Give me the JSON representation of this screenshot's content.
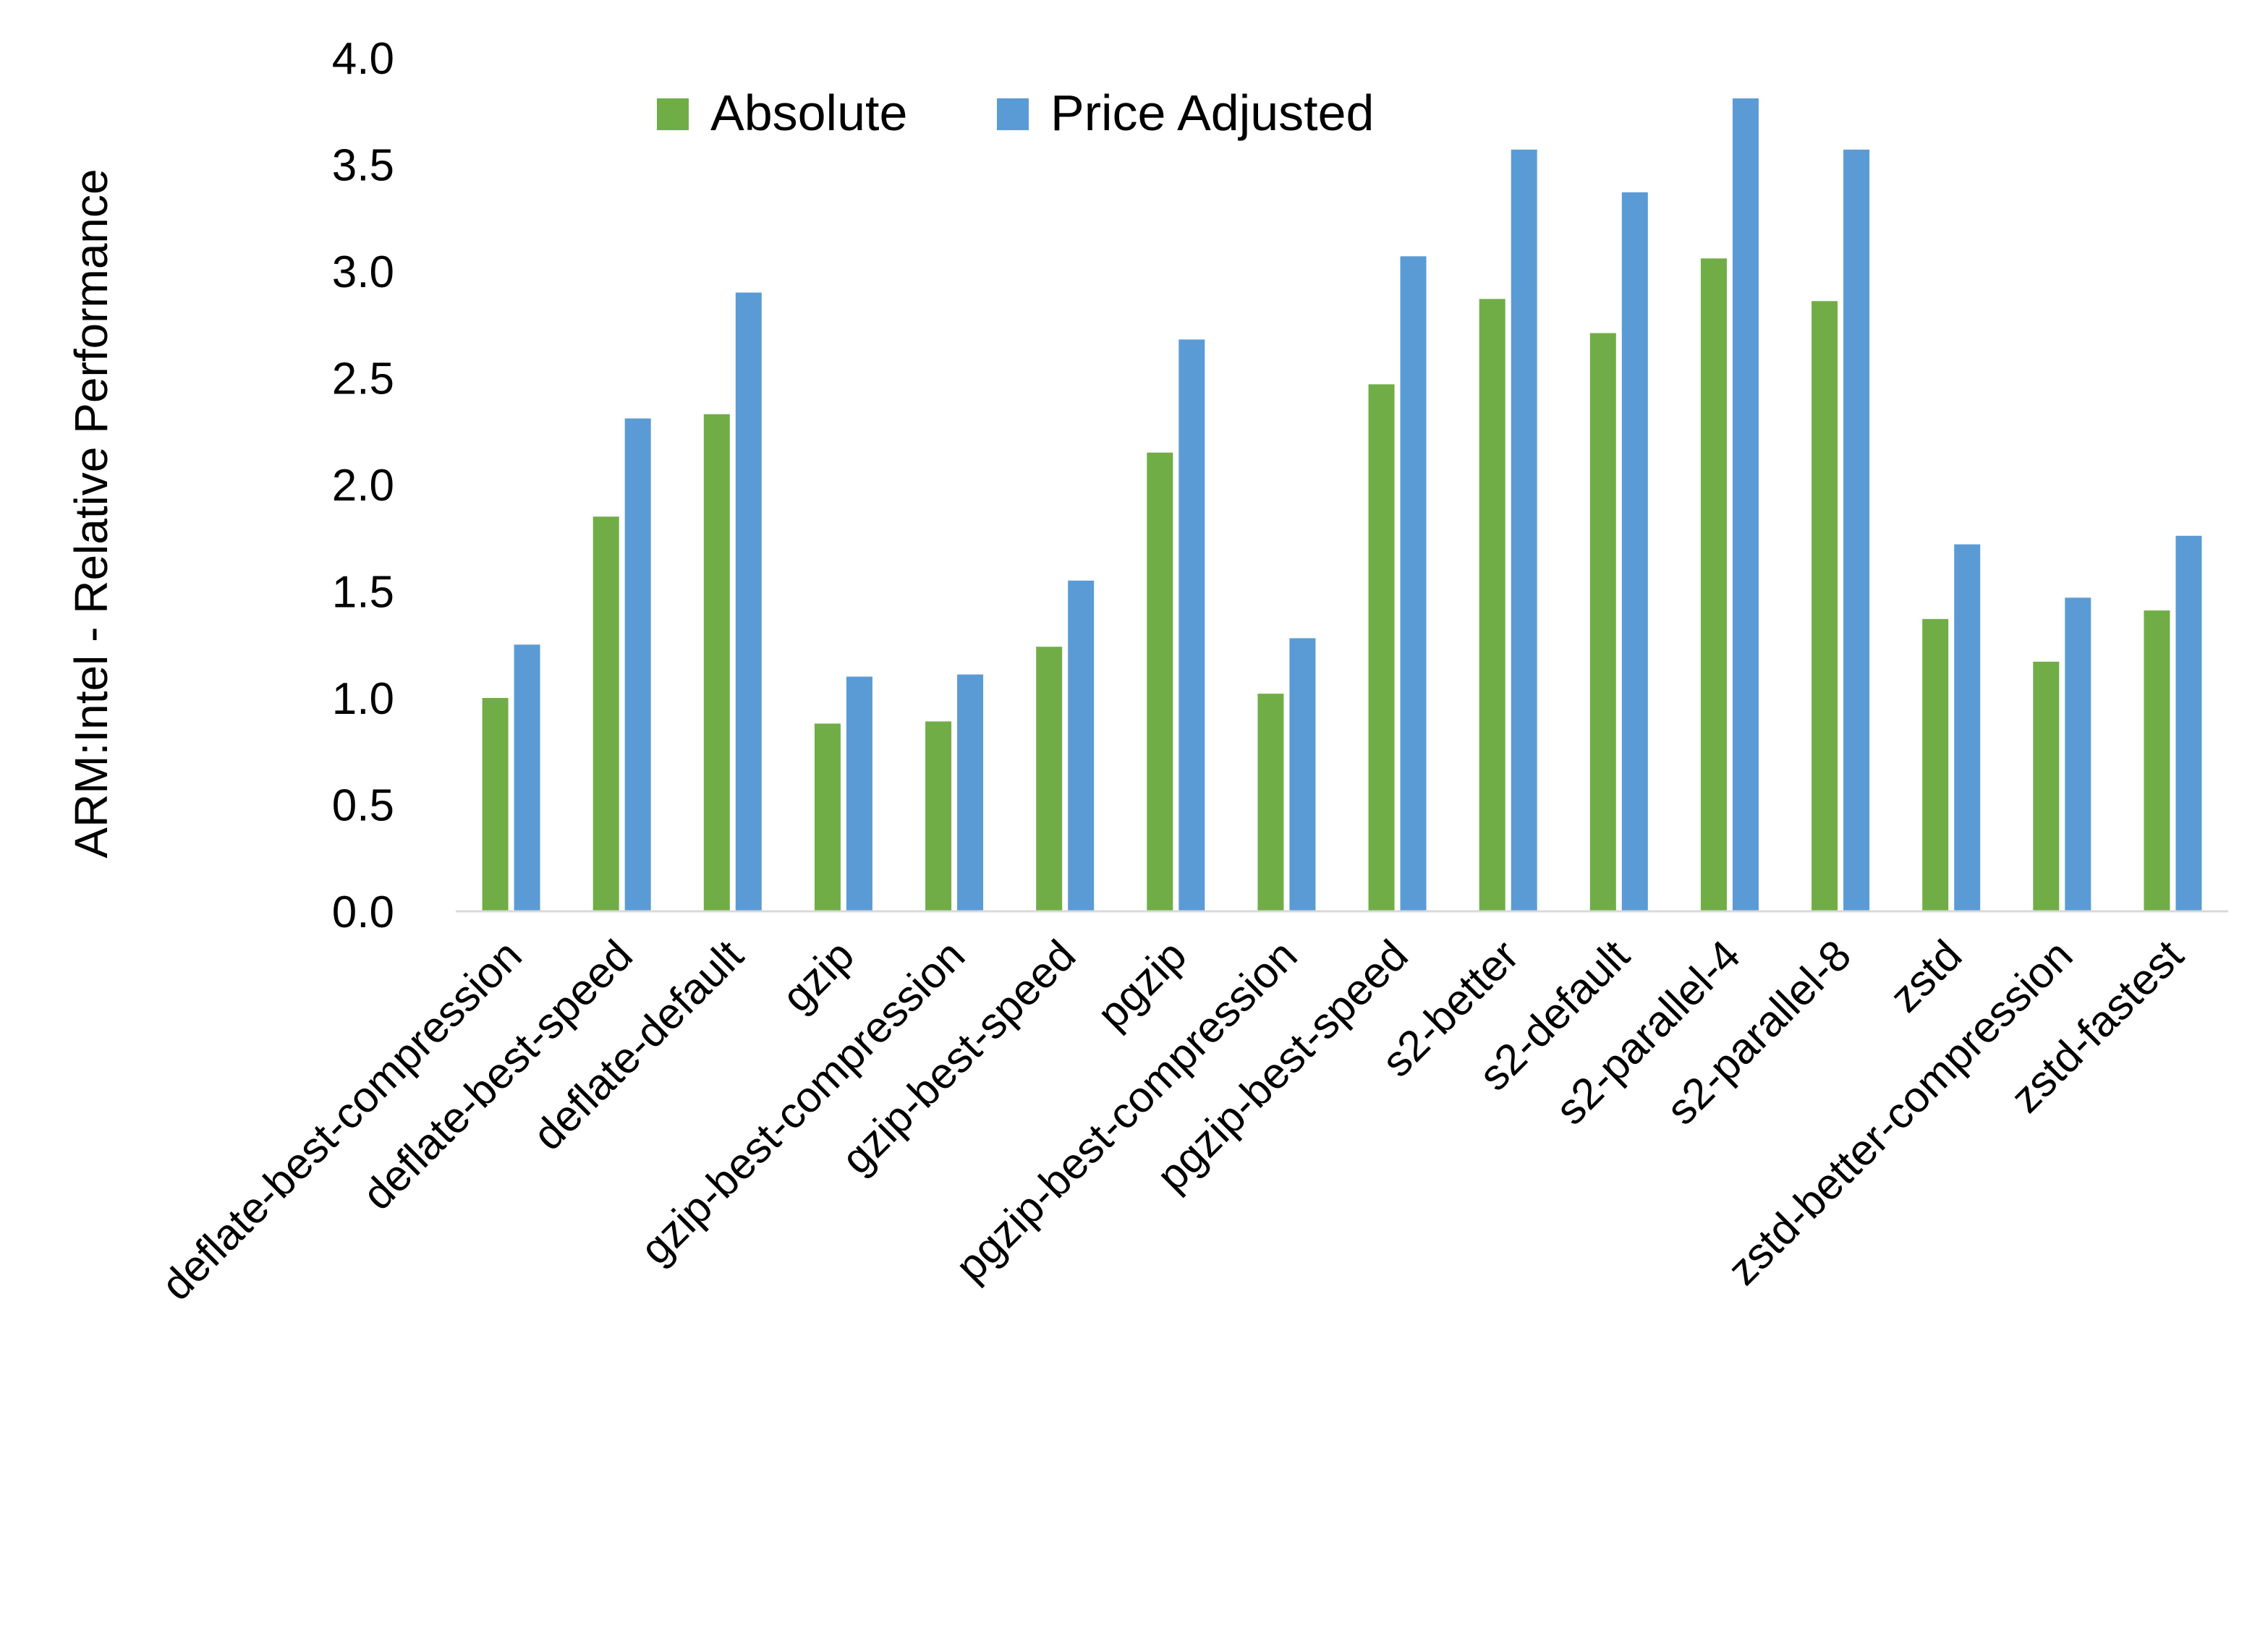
{
  "chart_data": {
    "type": "bar",
    "title": "",
    "xlabel": "",
    "ylabel": "ARM:Intel - Relative Performance",
    "ylim": [
      0,
      4.0
    ],
    "yticks": [
      "0.0",
      "0.5",
      "1.0",
      "1.5",
      "2.0",
      "2.5",
      "3.0",
      "3.5",
      "4.0"
    ],
    "grid": false,
    "legend_position": "top-center",
    "categories": [
      "deflate-best-compression",
      "deflate-best-speed",
      "deflate-default",
      "gzip",
      "gzip-best-compression",
      "gzip-best-speed",
      "pgzip",
      "pgzip-best-compression",
      "pgzip-best-speed",
      "s2-better",
      "s2-default",
      "s2-parallel-4",
      "s2-parallel-8",
      "zstd",
      "zstd-better-compression",
      "zstd-fastest"
    ],
    "series": [
      {
        "name": "Absolute",
        "color": "#70AD47",
        "values": [
          1.0,
          1.85,
          2.33,
          0.88,
          0.89,
          1.24,
          2.15,
          1.02,
          2.47,
          2.87,
          2.71,
          3.06,
          2.86,
          1.37,
          1.17,
          1.41
        ]
      },
      {
        "name": "Price Adjusted",
        "color": "#5B9BD5",
        "values": [
          1.25,
          2.31,
          2.9,
          1.1,
          1.11,
          1.55,
          2.68,
          1.28,
          3.07,
          3.57,
          3.37,
          3.81,
          3.57,
          1.72,
          1.47,
          1.76
        ]
      }
    ]
  }
}
